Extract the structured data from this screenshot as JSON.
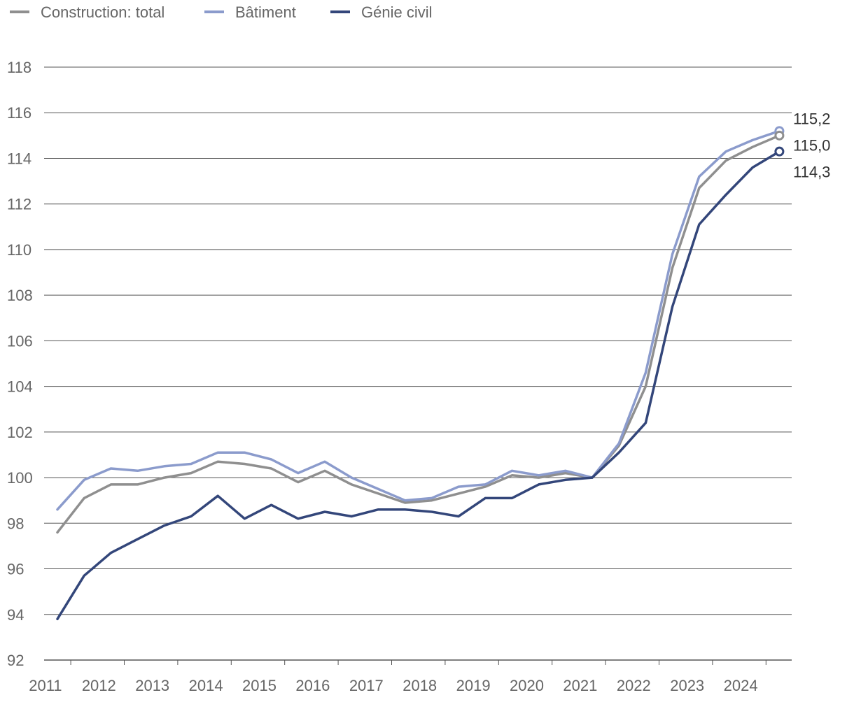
{
  "chart_data": {
    "type": "line",
    "title": "",
    "xlabel": "",
    "ylabel": "",
    "ylim": [
      92,
      118
    ],
    "y_ticks": [
      "92",
      "94",
      "96",
      "98",
      "100",
      "102",
      "104",
      "106",
      "108",
      "110",
      "112",
      "114",
      "116",
      "118"
    ],
    "x_tick_labels": [
      "2011",
      "2012",
      "2013",
      "2014",
      "2015",
      "2016",
      "2017",
      "2018",
      "2019",
      "2020",
      "2021",
      "2022",
      "2023",
      "2024"
    ],
    "grid": "horizontal",
    "legend_position": "top-left",
    "x": [
      "2010-Q4",
      "2011-Q2",
      "2011-Q4",
      "2012-Q2",
      "2012-Q4",
      "2013-Q2",
      "2013-Q4",
      "2014-Q2",
      "2014-Q4",
      "2015-Q2",
      "2015-Q4",
      "2016-Q2",
      "2016-Q4",
      "2017-Q2",
      "2017-Q4",
      "2018-Q2",
      "2018-Q4",
      "2019-Q2",
      "2019-Q4",
      "2020-Q2",
      "2020-Q4",
      "2021-Q2",
      "2021-Q4",
      "2022-Q2",
      "2022-Q4",
      "2023-Q2",
      "2023-Q4",
      "2024-Q2"
    ],
    "series": [
      {
        "name": "Construction: total",
        "color": "#8f8f8f",
        "values": [
          97.6,
          99.1,
          99.7,
          99.7,
          100.0,
          100.2,
          100.7,
          100.6,
          100.4,
          99.8,
          100.3,
          99.7,
          99.3,
          98.9,
          99.0,
          99.3,
          99.6,
          100.1,
          100.0,
          100.2,
          100.0,
          101.4,
          104.0,
          109.2,
          112.7,
          113.9,
          114.5,
          115.0
        ],
        "end_label": "115,0"
      },
      {
        "name": "Bâtiment",
        "color": "#8b9bcc",
        "values": [
          98.6,
          99.9,
          100.4,
          100.3,
          100.5,
          100.6,
          101.1,
          101.1,
          100.8,
          100.2,
          100.7,
          100.0,
          99.5,
          99.0,
          99.1,
          99.6,
          99.7,
          100.3,
          100.1,
          100.3,
          100.0,
          101.5,
          104.6,
          109.8,
          113.2,
          114.3,
          114.8,
          115.2
        ],
        "end_label": "115,2"
      },
      {
        "name": "Génie civil",
        "color": "#33467a",
        "values": [
          93.8,
          95.7,
          96.7,
          97.3,
          97.9,
          98.3,
          99.2,
          98.2,
          98.8,
          98.2,
          98.5,
          98.3,
          98.6,
          98.6,
          98.5,
          98.3,
          99.1,
          99.1,
          99.7,
          99.9,
          100.0,
          101.1,
          102.4,
          107.5,
          111.1,
          112.4,
          113.6,
          114.3
        ],
        "end_label": "114,3"
      }
    ]
  }
}
